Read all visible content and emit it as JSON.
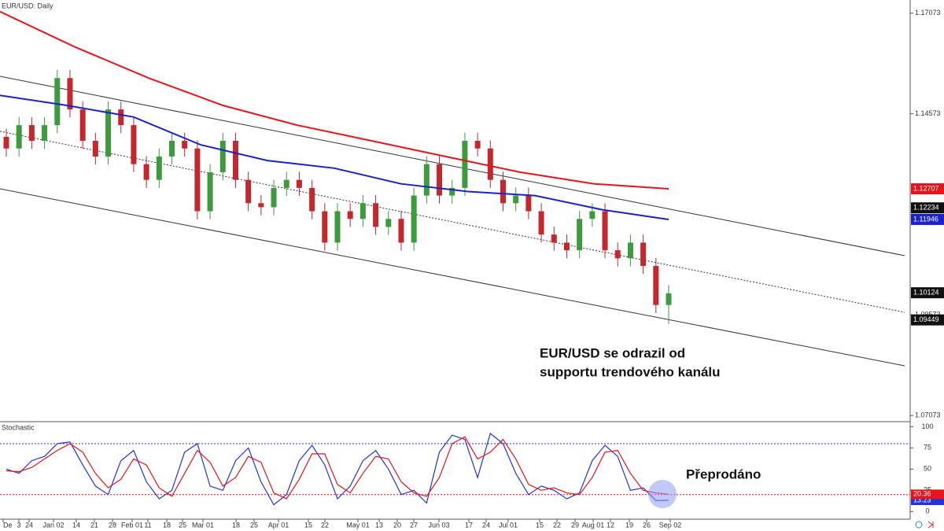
{
  "chart_data": [
    {
      "type": "candlestick",
      "title": "EUR/USD: Daily",
      "open": [
        1.14,
        1.1371,
        1.1429,
        1.139,
        1.1429,
        1.1546,
        1.1468,
        1.139,
        1.1351,
        1.1468,
        1.1429,
        1.1332,
        1.1293,
        1.1351,
        1.139,
        1.1371,
        1.1215,
        1.1312,
        1.139,
        1.1293,
        1.1235,
        1.1225,
        1.1273,
        1.1293,
        1.1273,
        1.1215,
        1.1137,
        1.1215,
        1.1196,
        1.1235,
        1.1176,
        1.1196,
        1.1137,
        1.1254,
        1.1332,
        1.1254,
        1.1273,
        1.139,
        1.1371,
        1.1293,
        1.1235,
        1.1254,
        1.1215,
        1.1157,
        1.1137,
        1.1118,
        1.1196,
        1.1215,
        1.1118,
        1.1098,
        1.1137,
        1.1079,
        1.0982
      ],
      "high": [
        1.142,
        1.1449,
        1.1449,
        1.1449,
        1.1566,
        1.1566,
        1.1488,
        1.141,
        1.1488,
        1.1488,
        1.1449,
        1.1352,
        1.1371,
        1.141,
        1.141,
        1.1391,
        1.1332,
        1.141,
        1.141,
        1.1313,
        1.1255,
        1.1293,
        1.1313,
        1.1313,
        1.1293,
        1.1235,
        1.1235,
        1.1235,
        1.1255,
        1.1255,
        1.1216,
        1.1216,
        1.1274,
        1.1352,
        1.1352,
        1.1293,
        1.141,
        1.141,
        1.1391,
        1.1313,
        1.1274,
        1.1274,
        1.1235,
        1.1177,
        1.1157,
        1.1216,
        1.1235,
        1.1235,
        1.1138,
        1.1157,
        1.1157,
        1.1099,
        1.1031
      ],
      "low": [
        1.1351,
        1.1351,
        1.137,
        1.137,
        1.1409,
        1.1448,
        1.137,
        1.1331,
        1.1331,
        1.1409,
        1.1312,
        1.1273,
        1.1273,
        1.1331,
        1.1351,
        1.1195,
        1.1195,
        1.1292,
        1.1273,
        1.1215,
        1.1205,
        1.1205,
        1.1253,
        1.1253,
        1.1195,
        1.1117,
        1.1117,
        1.1176,
        1.1176,
        1.1156,
        1.1156,
        1.1117,
        1.1117,
        1.1234,
        1.1234,
        1.1234,
        1.1253,
        1.1351,
        1.1273,
        1.1215,
        1.1215,
        1.1195,
        1.1137,
        1.1117,
        1.1098,
        1.1098,
        1.1176,
        1.1098,
        1.1078,
        1.1078,
        1.1059,
        1.0962,
        1.0935
      ],
      "close": [
        1.1371,
        1.1429,
        1.139,
        1.1429,
        1.1546,
        1.1468,
        1.139,
        1.1351,
        1.1468,
        1.1429,
        1.1332,
        1.1293,
        1.1351,
        1.139,
        1.1371,
        1.1215,
        1.1312,
        1.139,
        1.1293,
        1.1235,
        1.1225,
        1.1273,
        1.1293,
        1.1273,
        1.1215,
        1.1137,
        1.1215,
        1.1196,
        1.1235,
        1.1176,
        1.1196,
        1.1137,
        1.1254,
        1.1332,
        1.1254,
        1.1273,
        1.139,
        1.1371,
        1.1293,
        1.1235,
        1.1254,
        1.1215,
        1.1157,
        1.1137,
        1.1118,
        1.1196,
        1.1215,
        1.1118,
        1.1098,
        1.1137,
        1.1079,
        1.0982,
        1.1011
      ],
      "up_color": "#3d9b3d",
      "down_color": "#c4272d",
      "series": [
        {
          "color": "#e8141c",
          "values": [
            1.1711,
            1.1624,
            1.1546,
            1.1478,
            1.1429,
            1.139,
            1.1351,
            1.1312,
            1.1283,
            1.12707
          ]
        },
        {
          "color": "#1b22c8",
          "values": [
            1.1503,
            1.1478,
            1.1449,
            1.138,
            1.1341,
            1.1322,
            1.1283,
            1.1264,
            1.1254,
            1.1219,
            1.11946
          ]
        }
      ],
      "ylim": [
        1.0694,
        1.174
      ],
      "yticks": [
        1.17073,
        1.14573,
        1.09573,
        1.07073
      ],
      "price_tags": [
        {
          "value": 1.12707,
          "color": "#e8141c"
        },
        {
          "value": 1.12234,
          "color": "#111111"
        },
        {
          "value": 1.11946,
          "color": "#1b22c8"
        },
        {
          "value": 1.10124,
          "color": "#111111"
        },
        {
          "value": 1.09449,
          "color": "#111111"
        }
      ],
      "annotations": [
        "EUR/USD se odrazil od",
        "supportu trendového kanálu"
      ],
      "x_labels": [
        "De",
        "3",
        "24",
        "Jan 02",
        "14",
        "21",
        "28",
        "Feb 01",
        "11",
        "18",
        "25",
        "Mar 01",
        "18",
        "25",
        "Apr 01",
        "15",
        "22",
        "May 01",
        "13",
        "20",
        "27",
        "Jun 03",
        "17",
        "24",
        "Jul 01",
        "15",
        "22",
        "29",
        "Aug 01",
        "12",
        "19",
        "26",
        "Sep 02"
      ]
    },
    {
      "type": "line",
      "title": "Stochastic",
      "series": [
        {
          "color": "#2233dd",
          "values": [
            50,
            45,
            60,
            65,
            80,
            82,
            55,
            30,
            20,
            60,
            72,
            35,
            15,
            25,
            70,
            80,
            30,
            25,
            60,
            75,
            35,
            8,
            20,
            60,
            78,
            55,
            15,
            30,
            60,
            72,
            50,
            20,
            25,
            10,
            70,
            90,
            85,
            40,
            92,
            80,
            45,
            20,
            30,
            25,
            15,
            22,
            60,
            78,
            65,
            25,
            28,
            13,
            13.23
          ]
        },
        {
          "color": "#e8141c",
          "values": [
            48,
            47,
            52,
            62,
            72,
            80,
            70,
            45,
            28,
            38,
            62,
            55,
            28,
            18,
            45,
            72,
            58,
            30,
            40,
            65,
            58,
            22,
            15,
            38,
            68,
            68,
            32,
            22,
            45,
            65,
            62,
            35,
            22,
            18,
            40,
            80,
            88,
            62,
            70,
            85,
            62,
            32,
            25,
            28,
            22,
            20,
            40,
            70,
            72,
            45,
            25,
            22,
            20.36
          ]
        }
      ],
      "ylim": [
        -9,
        105
      ],
      "yticks": [
        100,
        75,
        50,
        25,
        0
      ],
      "levels": [
        80,
        20
      ],
      "annotation": "Přeprodáno"
    }
  ]
}
